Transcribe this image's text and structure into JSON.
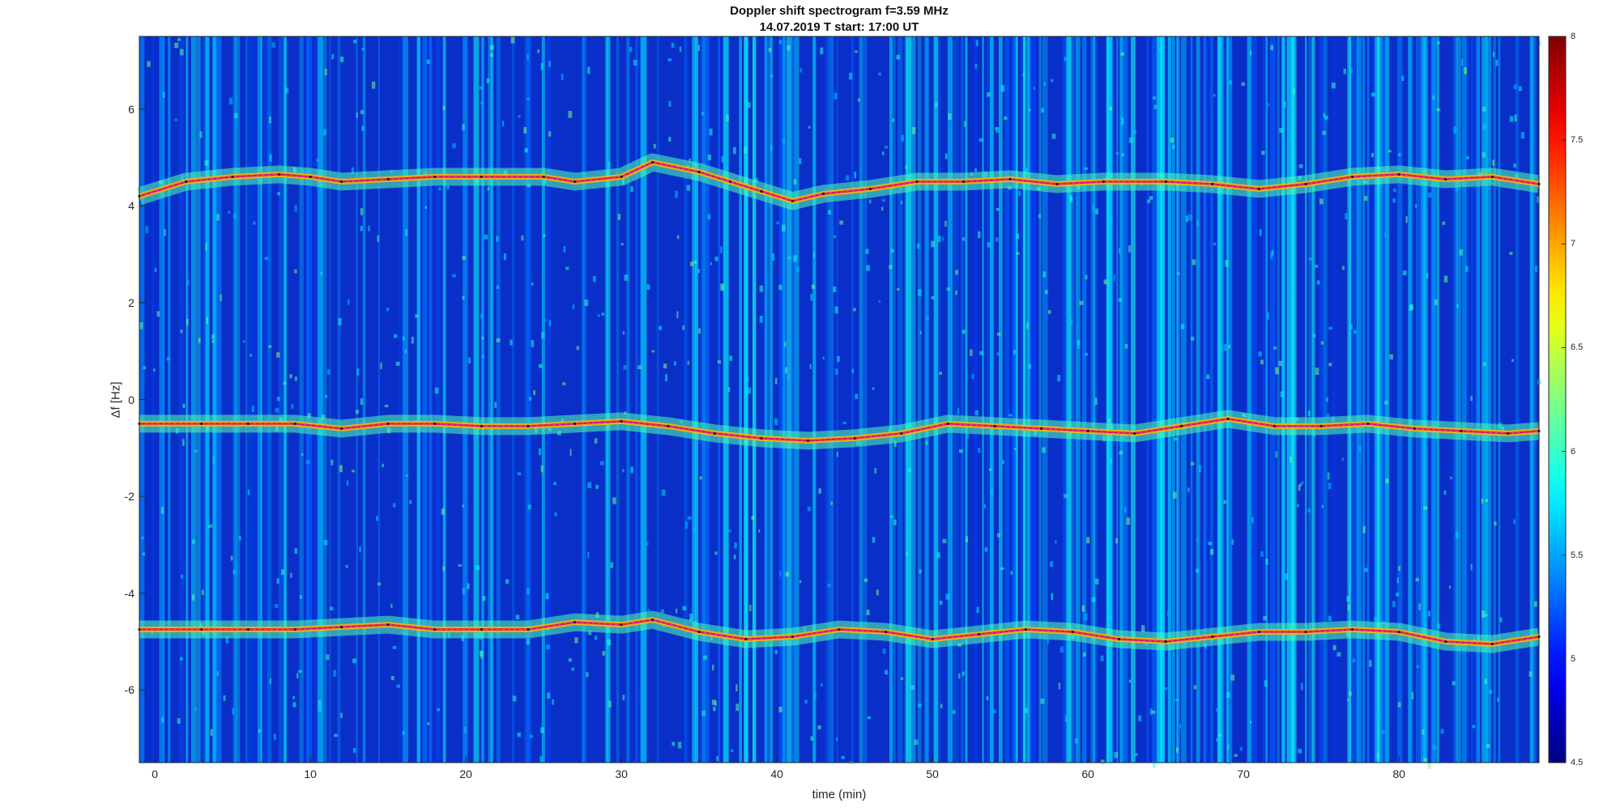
{
  "chart_data": {
    "type": "heatmap",
    "title": "Doppler shift spectrogram f=3.59 MHz",
    "subtitle": "14.07.2019    T start: 17:00 UT",
    "xlabel": "time (min)",
    "ylabel": "Δf [Hz]",
    "xlim": [
      -1,
      89
    ],
    "ylim": [
      -7.5,
      7.5
    ],
    "xticks": [
      0,
      10,
      20,
      30,
      40,
      50,
      60,
      70,
      80
    ],
    "yticks": [
      -6,
      -4,
      -2,
      0,
      2,
      4,
      6
    ],
    "colorbar": {
      "colormap": "jet",
      "range": [
        4.5,
        8
      ],
      "ticks": [
        4.5,
        5,
        5.5,
        6,
        6.5,
        7,
        7.5,
        8
      ]
    },
    "traces": [
      {
        "label": "upper",
        "x": [
          -1,
          2,
          5,
          8,
          10,
          12,
          15,
          18,
          21,
          25,
          27,
          30,
          32,
          35,
          37,
          39,
          41,
          43,
          46,
          49,
          52,
          55,
          58,
          61,
          65,
          68,
          71,
          74,
          77,
          80,
          83,
          86,
          89
        ],
        "y": [
          4.2,
          4.5,
          4.6,
          4.65,
          4.6,
          4.5,
          4.55,
          4.6,
          4.6,
          4.6,
          4.5,
          4.6,
          4.9,
          4.7,
          4.5,
          4.3,
          4.1,
          4.25,
          4.35,
          4.5,
          4.5,
          4.55,
          4.45,
          4.5,
          4.5,
          4.45,
          4.35,
          4.45,
          4.6,
          4.65,
          4.55,
          4.6,
          4.45
        ]
      },
      {
        "label": "middle",
        "x": [
          -1,
          3,
          6,
          9,
          12,
          15,
          18,
          21,
          24,
          27,
          30,
          33,
          36,
          39,
          42,
          45,
          48,
          51,
          54,
          57,
          60,
          63,
          66,
          69,
          72,
          75,
          78,
          81,
          84,
          87,
          89
        ],
        "y": [
          -0.5,
          -0.5,
          -0.5,
          -0.5,
          -0.6,
          -0.5,
          -0.5,
          -0.55,
          -0.55,
          -0.5,
          -0.45,
          -0.55,
          -0.7,
          -0.8,
          -0.85,
          -0.8,
          -0.7,
          -0.5,
          -0.55,
          -0.6,
          -0.65,
          -0.7,
          -0.55,
          -0.4,
          -0.55,
          -0.55,
          -0.5,
          -0.6,
          -0.65,
          -0.7,
          -0.65
        ]
      },
      {
        "label": "lower",
        "x": [
          -1,
          3,
          6,
          9,
          12,
          15,
          18,
          21,
          24,
          27,
          30,
          32,
          35,
          38,
          41,
          44,
          47,
          50,
          53,
          56,
          59,
          62,
          65,
          68,
          71,
          74,
          77,
          80,
          83,
          86,
          89
        ],
        "y": [
          -4.75,
          -4.75,
          -4.75,
          -4.75,
          -4.7,
          -4.65,
          -4.75,
          -4.75,
          -4.75,
          -4.6,
          -4.65,
          -4.55,
          -4.8,
          -4.95,
          -4.9,
          -4.75,
          -4.8,
          -4.95,
          -4.85,
          -4.75,
          -4.8,
          -4.95,
          -5.0,
          -4.9,
          -4.8,
          -4.8,
          -4.75,
          -4.8,
          -5.0,
          -5.05,
          -4.9
        ]
      }
    ]
  }
}
